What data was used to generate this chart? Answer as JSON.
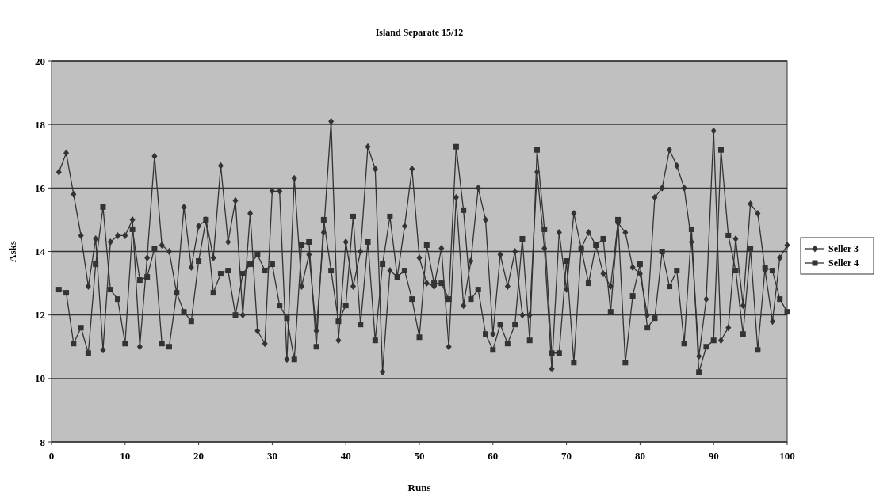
{
  "chart_data": {
    "type": "line",
    "title": "Island Separate 15/12",
    "xlabel": "Runs",
    "ylabel": "Asks",
    "x": [
      1,
      2,
      3,
      4,
      5,
      6,
      7,
      8,
      9,
      10,
      11,
      12,
      13,
      14,
      15,
      16,
      17,
      18,
      19,
      20,
      21,
      22,
      23,
      24,
      25,
      26,
      27,
      28,
      29,
      30,
      31,
      32,
      33,
      34,
      35,
      36,
      37,
      38,
      39,
      40,
      41,
      42,
      43,
      44,
      45,
      46,
      47,
      48,
      49,
      50,
      51,
      52,
      53,
      54,
      55,
      56,
      57,
      58,
      59,
      60,
      61,
      62,
      63,
      64,
      65,
      66,
      67,
      68,
      69,
      70,
      71,
      72,
      73,
      74,
      75,
      76,
      77,
      78,
      79,
      80,
      81,
      82,
      83,
      84,
      85,
      86,
      87,
      88,
      89,
      90,
      91,
      92,
      93,
      94,
      95,
      96,
      97,
      98,
      99,
      100
    ],
    "series": [
      {
        "name": "Seller 3",
        "color": "#333333",
        "marker": "diamond",
        "values": [
          16.5,
          17.1,
          15.8,
          14.5,
          12.9,
          14.4,
          10.9,
          14.3,
          14.5,
          14.5,
          15.0,
          11.0,
          13.8,
          17.0,
          14.2,
          14.0,
          12.7,
          15.4,
          13.5,
          14.8,
          15.0,
          13.8,
          16.7,
          14.3,
          15.6,
          12.0,
          15.2,
          11.5,
          11.1,
          15.9,
          15.9,
          10.6,
          16.3,
          12.9,
          13.9,
          11.5,
          14.6,
          18.1,
          11.2,
          14.3,
          12.9,
          14.0,
          17.3,
          16.6,
          10.2,
          13.4,
          13.2,
          14.8,
          16.6,
          13.8,
          13.0,
          12.9,
          14.1,
          11.0,
          15.7,
          12.3,
          13.7,
          16.0,
          15.0,
          11.4,
          13.9,
          12.9,
          14.0,
          12.0,
          12.0,
          16.5,
          14.1,
          10.3,
          14.6,
          12.8,
          15.2,
          14.1,
          14.6,
          14.2,
          13.3,
          12.9,
          14.9,
          14.6,
          13.5,
          13.3,
          12.0,
          15.7,
          16.0,
          17.2,
          16.7,
          16.0,
          14.3,
          10.7,
          12.5,
          17.8,
          11.2,
          11.6,
          14.4,
          12.3,
          15.5,
          15.2,
          13.4,
          11.8,
          13.8,
          14.2
        ]
      },
      {
        "name": "Seller 4",
        "color": "#333333",
        "marker": "square",
        "values": [
          12.8,
          12.7,
          11.1,
          11.6,
          10.8,
          13.6,
          15.4,
          12.8,
          12.5,
          11.1,
          14.7,
          13.1,
          13.2,
          14.1,
          11.1,
          11.0,
          12.7,
          12.1,
          11.8,
          13.7,
          15.0,
          12.7,
          13.3,
          13.4,
          12.0,
          13.3,
          13.6,
          13.9,
          13.4,
          13.6,
          12.3,
          11.9,
          10.6,
          14.2,
          14.3,
          11.0,
          15.0,
          13.4,
          11.8,
          12.3,
          15.1,
          11.7,
          14.3,
          11.2,
          13.6,
          15.1,
          13.2,
          13.4,
          12.5,
          11.3,
          14.2,
          13.0,
          13.0,
          12.5,
          17.3,
          15.3,
          12.5,
          12.8,
          11.4,
          10.9,
          11.7,
          11.1,
          11.7,
          14.4,
          11.2,
          17.2,
          14.7,
          10.8,
          10.8,
          13.7,
          10.5,
          14.1,
          13.0,
          14.2,
          14.4,
          12.1,
          15.0,
          10.5,
          12.6,
          13.6,
          11.6,
          11.9,
          14.0,
          12.9,
          13.4,
          11.1,
          14.7,
          10.2,
          11.0,
          11.2,
          17.2,
          14.5,
          13.4,
          11.4,
          14.1,
          10.9,
          13.5,
          13.4,
          12.5,
          12.1
        ]
      }
    ],
    "xlim": [
      0,
      100
    ],
    "xticks": [
      0,
      10,
      20,
      30,
      40,
      50,
      60,
      70,
      80,
      90,
      100
    ],
    "ylim": [
      8,
      20
    ],
    "yticks": [
      8,
      10,
      12,
      14,
      16,
      18,
      20
    ],
    "grid": "y",
    "legend": "right",
    "line_style": "solid"
  }
}
